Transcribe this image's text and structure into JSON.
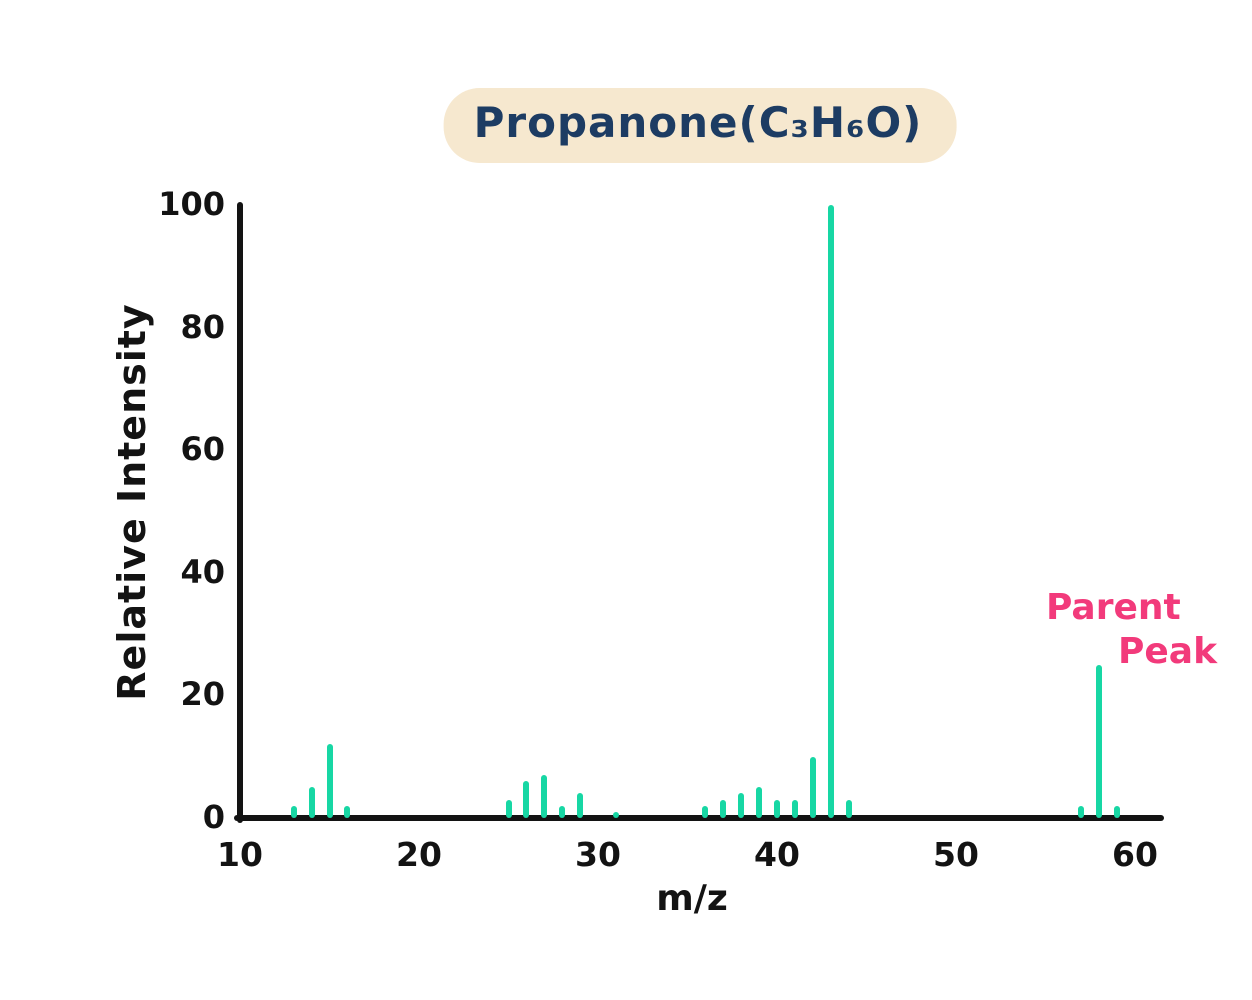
{
  "title": {
    "text": "Propanone(C₃H₆O)"
  },
  "annotation": {
    "line1": "Parent",
    "line2": "Peak"
  },
  "colors": {
    "background": "#ffffff",
    "axis": "#131313",
    "peak": "#17d7a4",
    "title_text": "#1d3c63",
    "title_bg": "#f6e8cf",
    "annotation": "#f23a7b"
  },
  "chart_data": {
    "type": "bar",
    "title": "Propanone(C₃H₆O)",
    "xlabel": "m/z",
    "ylabel": "Relative Intensity",
    "xlim": [
      10,
      62
    ],
    "ylim": [
      0,
      100
    ],
    "x_ticks": [
      10,
      20,
      30,
      40,
      50,
      60
    ],
    "y_ticks": [
      0,
      20,
      40,
      60,
      80,
      100
    ],
    "grid": false,
    "legend": false,
    "peaks": [
      {
        "mz": 13,
        "intensity": 2
      },
      {
        "mz": 14,
        "intensity": 5
      },
      {
        "mz": 15,
        "intensity": 12
      },
      {
        "mz": 16,
        "intensity": 2
      },
      {
        "mz": 25,
        "intensity": 3
      },
      {
        "mz": 26,
        "intensity": 6
      },
      {
        "mz": 27,
        "intensity": 7
      },
      {
        "mz": 28,
        "intensity": 2
      },
      {
        "mz": 29,
        "intensity": 4
      },
      {
        "mz": 31,
        "intensity": 1
      },
      {
        "mz": 36,
        "intensity": 2
      },
      {
        "mz": 37,
        "intensity": 3
      },
      {
        "mz": 38,
        "intensity": 4
      },
      {
        "mz": 39,
        "intensity": 5
      },
      {
        "mz": 40,
        "intensity": 3
      },
      {
        "mz": 41,
        "intensity": 3
      },
      {
        "mz": 42,
        "intensity": 10
      },
      {
        "mz": 43,
        "intensity": 100
      },
      {
        "mz": 44,
        "intensity": 3
      },
      {
        "mz": 57,
        "intensity": 2
      },
      {
        "mz": 58,
        "intensity": 25
      },
      {
        "mz": 59,
        "intensity": 2
      }
    ],
    "annotations": [
      {
        "text": "Parent Peak",
        "target_mz": 58
      }
    ]
  }
}
